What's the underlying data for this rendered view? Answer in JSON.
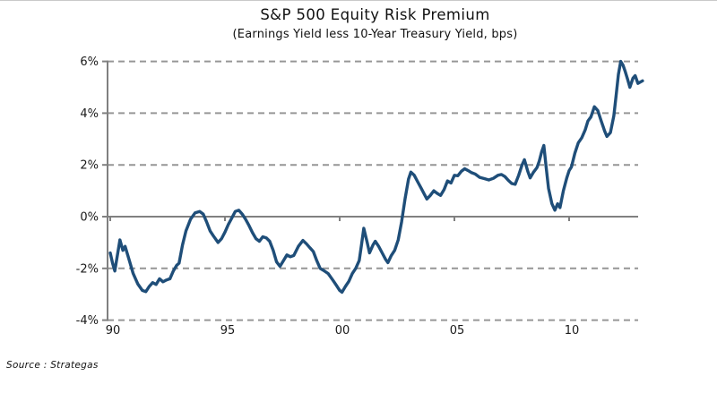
{
  "page": {
    "source_note": "Source : Strategas"
  },
  "chart_data": {
    "type": "line",
    "title": "S&P 500 Equity Risk Premium",
    "subtitle": "(Earnings Yield less 10-Year Treasury Yield, bps)",
    "xlabel": "",
    "ylabel": "",
    "ylim": [
      -4,
      6
    ],
    "xlim": [
      1990,
      2013.4
    ],
    "legend_position": "none",
    "grid": "horizontal dashed gridlines; zero line solid; vertical left axis solid",
    "colors": {
      "line": "#1f4e79",
      "grid": "#969696",
      "axis": "#808080",
      "text": "#1a1a1a"
    },
    "y_ticks": [
      {
        "value": 6,
        "label": "6%"
      },
      {
        "value": 4,
        "label": "4%"
      },
      {
        "value": 2,
        "label": "2%"
      },
      {
        "value": 0,
        "label": "0%"
      },
      {
        "value": -2,
        "label": "-2%"
      },
      {
        "value": -4,
        "label": "-4%"
      }
    ],
    "x_ticks": [
      {
        "value": 1990,
        "label": "90"
      },
      {
        "value": 1995,
        "label": "95"
      },
      {
        "value": 2000,
        "label": "00"
      },
      {
        "value": 2005,
        "label": "05"
      },
      {
        "value": 2010,
        "label": "10"
      }
    ],
    "series": [
      {
        "name": "S&P 500 earnings yield minus 10-year Treasury yield",
        "points": [
          [
            1990.0,
            -1.4
          ],
          [
            1990.1,
            -1.8
          ],
          [
            1990.2,
            -2.1
          ],
          [
            1990.3,
            -1.55
          ],
          [
            1990.42,
            -0.9
          ],
          [
            1990.55,
            -1.3
          ],
          [
            1990.65,
            -1.15
          ],
          [
            1990.8,
            -1.6
          ],
          [
            1991.0,
            -2.2
          ],
          [
            1991.2,
            -2.6
          ],
          [
            1991.4,
            -2.85
          ],
          [
            1991.55,
            -2.9
          ],
          [
            1991.7,
            -2.7
          ],
          [
            1991.85,
            -2.55
          ],
          [
            1992.0,
            -2.62
          ],
          [
            1992.15,
            -2.4
          ],
          [
            1992.3,
            -2.52
          ],
          [
            1992.45,
            -2.45
          ],
          [
            1992.6,
            -2.4
          ],
          [
            1992.75,
            -2.1
          ],
          [
            1992.9,
            -1.88
          ],
          [
            1993.0,
            -1.8
          ],
          [
            1993.15,
            -1.1
          ],
          [
            1993.3,
            -0.55
          ],
          [
            1993.5,
            -0.1
          ],
          [
            1993.7,
            0.15
          ],
          [
            1993.9,
            0.2
          ],
          [
            1994.05,
            0.1
          ],
          [
            1994.2,
            -0.2
          ],
          [
            1994.35,
            -0.55
          ],
          [
            1994.5,
            -0.75
          ],
          [
            1994.7,
            -1.0
          ],
          [
            1994.85,
            -0.85
          ],
          [
            1995.0,
            -0.6
          ],
          [
            1995.15,
            -0.3
          ],
          [
            1995.3,
            -0.05
          ],
          [
            1995.45,
            0.2
          ],
          [
            1995.6,
            0.25
          ],
          [
            1995.75,
            0.1
          ],
          [
            1995.9,
            -0.1
          ],
          [
            1996.05,
            -0.35
          ],
          [
            1996.2,
            -0.62
          ],
          [
            1996.35,
            -0.85
          ],
          [
            1996.5,
            -0.95
          ],
          [
            1996.65,
            -0.78
          ],
          [
            1996.8,
            -0.82
          ],
          [
            1996.95,
            -0.95
          ],
          [
            1997.1,
            -1.3
          ],
          [
            1997.25,
            -1.75
          ],
          [
            1997.4,
            -1.92
          ],
          [
            1997.55,
            -1.7
          ],
          [
            1997.7,
            -1.48
          ],
          [
            1997.85,
            -1.55
          ],
          [
            1998.0,
            -1.5
          ],
          [
            1998.2,
            -1.15
          ],
          [
            1998.4,
            -0.92
          ],
          [
            1998.55,
            -1.05
          ],
          [
            1998.7,
            -1.2
          ],
          [
            1998.85,
            -1.35
          ],
          [
            1999.0,
            -1.7
          ],
          [
            1999.15,
            -2.0
          ],
          [
            1999.3,
            -2.08
          ],
          [
            1999.5,
            -2.2
          ],
          [
            1999.7,
            -2.45
          ],
          [
            1999.85,
            -2.65
          ],
          [
            2000.0,
            -2.85
          ],
          [
            2000.1,
            -2.92
          ],
          [
            2000.25,
            -2.7
          ],
          [
            2000.4,
            -2.5
          ],
          [
            2000.55,
            -2.2
          ],
          [
            2000.7,
            -2.0
          ],
          [
            2000.85,
            -1.7
          ],
          [
            2000.95,
            -1.1
          ],
          [
            2001.05,
            -0.45
          ],
          [
            2001.2,
            -1.0
          ],
          [
            2001.3,
            -1.4
          ],
          [
            2001.45,
            -1.1
          ],
          [
            2001.55,
            -0.95
          ],
          [
            2001.7,
            -1.15
          ],
          [
            2001.85,
            -1.4
          ],
          [
            2002.0,
            -1.65
          ],
          [
            2002.1,
            -1.78
          ],
          [
            2002.25,
            -1.5
          ],
          [
            2002.4,
            -1.3
          ],
          [
            2002.55,
            -0.9
          ],
          [
            2002.7,
            -0.2
          ],
          [
            2002.85,
            0.7
          ],
          [
            2003.0,
            1.45
          ],
          [
            2003.1,
            1.72
          ],
          [
            2003.25,
            1.6
          ],
          [
            2003.4,
            1.35
          ],
          [
            2003.55,
            1.1
          ],
          [
            2003.7,
            0.85
          ],
          [
            2003.8,
            0.68
          ],
          [
            2003.95,
            0.82
          ],
          [
            2004.1,
            1.0
          ],
          [
            2004.25,
            0.9
          ],
          [
            2004.4,
            0.82
          ],
          [
            2004.55,
            1.05
          ],
          [
            2004.7,
            1.38
          ],
          [
            2004.85,
            1.3
          ],
          [
            2005.0,
            1.6
          ],
          [
            2005.15,
            1.58
          ],
          [
            2005.3,
            1.75
          ],
          [
            2005.45,
            1.85
          ],
          [
            2005.6,
            1.78
          ],
          [
            2005.75,
            1.7
          ],
          [
            2005.9,
            1.65
          ],
          [
            2006.1,
            1.52
          ],
          [
            2006.3,
            1.47
          ],
          [
            2006.5,
            1.42
          ],
          [
            2006.7,
            1.48
          ],
          [
            2006.9,
            1.6
          ],
          [
            2007.05,
            1.63
          ],
          [
            2007.2,
            1.55
          ],
          [
            2007.35,
            1.4
          ],
          [
            2007.5,
            1.28
          ],
          [
            2007.65,
            1.25
          ],
          [
            2007.8,
            1.6
          ],
          [
            2007.95,
            2.0
          ],
          [
            2008.05,
            2.2
          ],
          [
            2008.2,
            1.75
          ],
          [
            2008.3,
            1.5
          ],
          [
            2008.45,
            1.72
          ],
          [
            2008.6,
            1.9
          ],
          [
            2008.7,
            2.15
          ],
          [
            2008.8,
            2.5
          ],
          [
            2008.9,
            2.75
          ],
          [
            2009.0,
            1.9
          ],
          [
            2009.1,
            1.1
          ],
          [
            2009.25,
            0.5
          ],
          [
            2009.38,
            0.25
          ],
          [
            2009.5,
            0.5
          ],
          [
            2009.6,
            0.35
          ],
          [
            2009.75,
            1.0
          ],
          [
            2009.9,
            1.5
          ],
          [
            2010.0,
            1.78
          ],
          [
            2010.1,
            1.92
          ],
          [
            2010.25,
            2.45
          ],
          [
            2010.4,
            2.85
          ],
          [
            2010.55,
            3.05
          ],
          [
            2010.7,
            3.35
          ],
          [
            2010.82,
            3.7
          ],
          [
            2010.95,
            3.85
          ],
          [
            2011.1,
            4.25
          ],
          [
            2011.25,
            4.1
          ],
          [
            2011.4,
            3.7
          ],
          [
            2011.55,
            3.3
          ],
          [
            2011.65,
            3.1
          ],
          [
            2011.8,
            3.25
          ],
          [
            2011.95,
            3.9
          ],
          [
            2012.05,
            4.7
          ],
          [
            2012.15,
            5.5
          ],
          [
            2012.25,
            6.0
          ],
          [
            2012.35,
            5.85
          ],
          [
            2012.45,
            5.6
          ],
          [
            2012.55,
            5.3
          ],
          [
            2012.65,
            5.0
          ],
          [
            2012.78,
            5.35
          ],
          [
            2012.88,
            5.45
          ],
          [
            2013.0,
            5.15
          ],
          [
            2013.1,
            5.2
          ],
          [
            2013.2,
            5.25
          ]
        ]
      }
    ]
  }
}
